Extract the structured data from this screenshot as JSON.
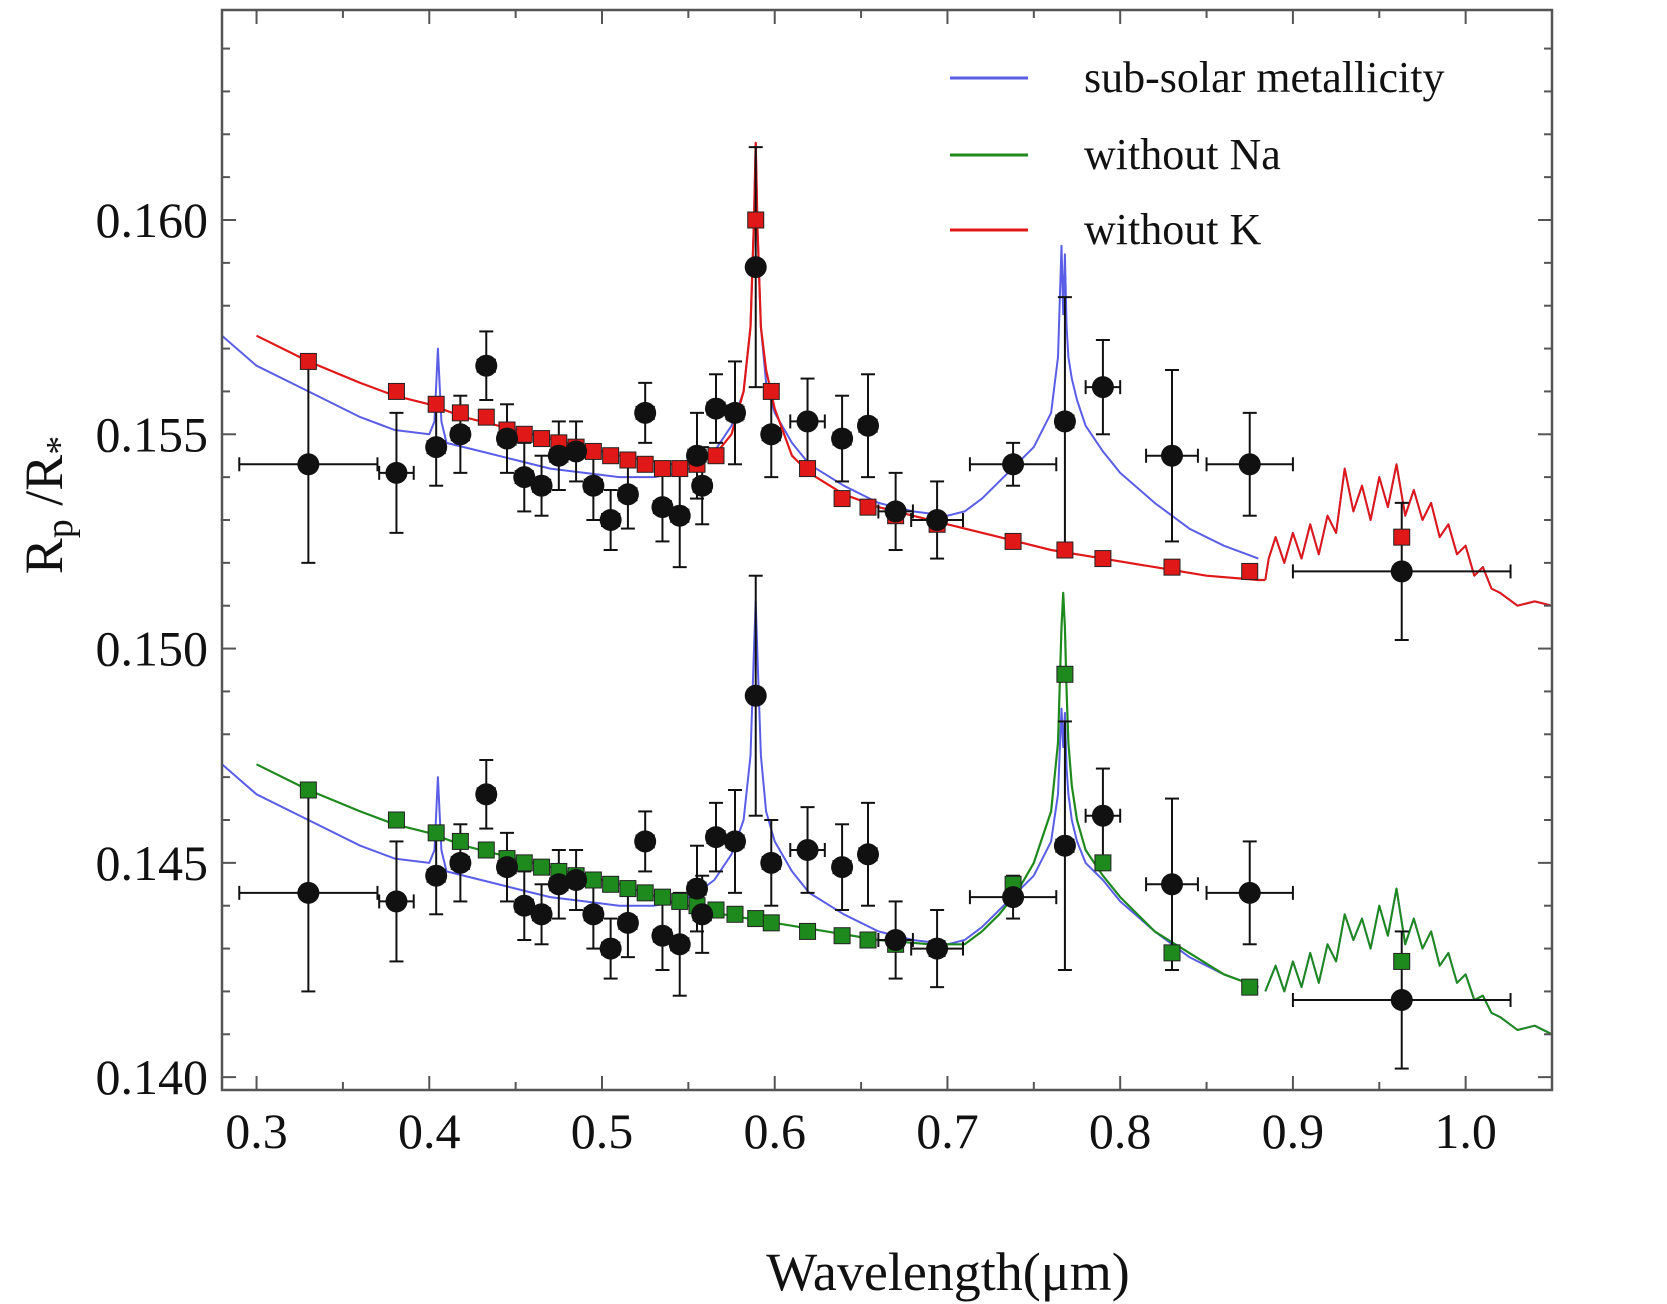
{
  "chart_data": {
    "type": "scatter",
    "xlabel": "Wavelength(μm)",
    "ylabel_main": "R",
    "ylabel_sub1": "p",
    "ylabel_sep": " /R",
    "ylabel_sub2": "*",
    "xlim": [
      0.28,
      1.05
    ],
    "ylim": [
      0.1397,
      0.1649
    ],
    "x_ticks": [
      0.3,
      0.4,
      0.5,
      0.6,
      0.7,
      0.8,
      0.9,
      1.0
    ],
    "x_tick_labels": [
      "0.3",
      "0.4",
      "0.5",
      "0.6",
      "0.7",
      "0.8",
      "0.9",
      "1.0"
    ],
    "y_ticks": [
      0.14,
      0.145,
      0.15,
      0.155,
      0.16
    ],
    "y_tick_labels": [
      "0.140",
      "0.145",
      "0.150",
      "0.155",
      "0.160"
    ],
    "legend_position": "top-right",
    "legend": [
      {
        "label": "sub-solar metallicity",
        "color": "#5a5ee6"
      },
      {
        "label": "without Na",
        "color": "#1e8a1e"
      },
      {
        "label": "without K",
        "color": "#e01818"
      }
    ],
    "observations_upper": [
      {
        "x": 0.33,
        "y": 0.1543,
        "xerr": 0.04,
        "yerr": 0.0023
      },
      {
        "x": 0.381,
        "y": 0.1541,
        "xerr": 0.01,
        "yerr": 0.0014
      },
      {
        "x": 0.404,
        "y": 0.1547,
        "xerr": 0.005,
        "yerr": 0.0009
      },
      {
        "x": 0.418,
        "y": 0.155,
        "xerr": 0.005,
        "yerr": 0.0009
      },
      {
        "x": 0.433,
        "y": 0.1566,
        "xerr": 0.005,
        "yerr": 0.0008
      },
      {
        "x": 0.445,
        "y": 0.1549,
        "xerr": 0.005,
        "yerr": 0.0008
      },
      {
        "x": 0.455,
        "y": 0.154,
        "xerr": 0.005,
        "yerr": 0.0008
      },
      {
        "x": 0.465,
        "y": 0.1538,
        "xerr": 0.005,
        "yerr": 0.0007
      },
      {
        "x": 0.475,
        "y": 0.1545,
        "xerr": 0.005,
        "yerr": 0.0008
      },
      {
        "x": 0.485,
        "y": 0.1546,
        "xerr": 0.005,
        "yerr": 0.0007
      },
      {
        "x": 0.495,
        "y": 0.1538,
        "xerr": 0.005,
        "yerr": 0.0008
      },
      {
        "x": 0.505,
        "y": 0.153,
        "xerr": 0.005,
        "yerr": 0.0007
      },
      {
        "x": 0.515,
        "y": 0.1536,
        "xerr": 0.005,
        "yerr": 0.0008
      },
      {
        "x": 0.525,
        "y": 0.1555,
        "xerr": 0.005,
        "yerr": 0.0007
      },
      {
        "x": 0.535,
        "y": 0.1533,
        "xerr": 0.005,
        "yerr": 0.0008
      },
      {
        "x": 0.545,
        "y": 0.1531,
        "xerr": 0.005,
        "yerr": 0.0012
      },
      {
        "x": 0.555,
        "y": 0.1545,
        "xerr": 0.005,
        "yerr": 0.001
      },
      {
        "x": 0.558,
        "y": 0.1538,
        "xerr": 0.005,
        "yerr": 0.0009
      },
      {
        "x": 0.566,
        "y": 0.1556,
        "xerr": 0.005,
        "yerr": 0.0008
      },
      {
        "x": 0.577,
        "y": 0.1555,
        "xerr": 0.005,
        "yerr": 0.0012
      },
      {
        "x": 0.589,
        "y": 0.1589,
        "xerr": 0.003,
        "yerr": 0.0028
      },
      {
        "x": 0.598,
        "y": 0.155,
        "xerr": 0.005,
        "yerr": 0.001
      },
      {
        "x": 0.619,
        "y": 0.1553,
        "xerr": 0.01,
        "yerr": 0.001
      },
      {
        "x": 0.639,
        "y": 0.1549,
        "xerr": 0.005,
        "yerr": 0.001
      },
      {
        "x": 0.654,
        "y": 0.1552,
        "xerr": 0.005,
        "yerr": 0.0012
      },
      {
        "x": 0.67,
        "y": 0.1532,
        "xerr": 0.01,
        "yerr": 0.0009
      },
      {
        "x": 0.694,
        "y": 0.153,
        "xerr": 0.015,
        "yerr": 0.0009
      },
      {
        "x": 0.738,
        "y": 0.1543,
        "xerr": 0.025,
        "yerr": 0.0005
      },
      {
        "x": 0.768,
        "y": 0.1553,
        "xerr": 0.005,
        "yerr": 0.0029
      },
      {
        "x": 0.79,
        "y": 0.1561,
        "xerr": 0.01,
        "yerr": 0.0011
      },
      {
        "x": 0.83,
        "y": 0.1545,
        "xerr": 0.015,
        "yerr": 0.002
      },
      {
        "x": 0.875,
        "y": 0.1543,
        "xerr": 0.025,
        "yerr": 0.0012
      },
      {
        "x": 0.963,
        "y": 0.1518,
        "xerr": 0.063,
        "yerr": 0.0016
      }
    ],
    "observations_lower": [
      {
        "x": 0.33,
        "y": 0.1443,
        "xerr": 0.04,
        "yerr": 0.0023
      },
      {
        "x": 0.381,
        "y": 0.1441,
        "xerr": 0.01,
        "yerr": 0.0014
      },
      {
        "x": 0.404,
        "y": 0.1447,
        "xerr": 0.005,
        "yerr": 0.0009
      },
      {
        "x": 0.418,
        "y": 0.145,
        "xerr": 0.005,
        "yerr": 0.0009
      },
      {
        "x": 0.433,
        "y": 0.1466,
        "xerr": 0.005,
        "yerr": 0.0008
      },
      {
        "x": 0.445,
        "y": 0.1449,
        "xerr": 0.005,
        "yerr": 0.0008
      },
      {
        "x": 0.455,
        "y": 0.144,
        "xerr": 0.005,
        "yerr": 0.0008
      },
      {
        "x": 0.465,
        "y": 0.1438,
        "xerr": 0.005,
        "yerr": 0.0007
      },
      {
        "x": 0.475,
        "y": 0.1445,
        "xerr": 0.005,
        "yerr": 0.0008
      },
      {
        "x": 0.485,
        "y": 0.1446,
        "xerr": 0.005,
        "yerr": 0.0007
      },
      {
        "x": 0.495,
        "y": 0.1438,
        "xerr": 0.005,
        "yerr": 0.0008
      },
      {
        "x": 0.505,
        "y": 0.143,
        "xerr": 0.005,
        "yerr": 0.0007
      },
      {
        "x": 0.515,
        "y": 0.1436,
        "xerr": 0.005,
        "yerr": 0.0008
      },
      {
        "x": 0.525,
        "y": 0.1455,
        "xerr": 0.005,
        "yerr": 0.0007
      },
      {
        "x": 0.535,
        "y": 0.1433,
        "xerr": 0.005,
        "yerr": 0.0008
      },
      {
        "x": 0.545,
        "y": 0.1431,
        "xerr": 0.005,
        "yerr": 0.0012
      },
      {
        "x": 0.555,
        "y": 0.1444,
        "xerr": 0.005,
        "yerr": 0.001
      },
      {
        "x": 0.558,
        "y": 0.1438,
        "xerr": 0.005,
        "yerr": 0.0009
      },
      {
        "x": 0.566,
        "y": 0.1456,
        "xerr": 0.005,
        "yerr": 0.0008
      },
      {
        "x": 0.577,
        "y": 0.1455,
        "xerr": 0.005,
        "yerr": 0.0012
      },
      {
        "x": 0.589,
        "y": 0.1489,
        "xerr": 0.003,
        "yerr": 0.0028
      },
      {
        "x": 0.598,
        "y": 0.145,
        "xerr": 0.005,
        "yerr": 0.001
      },
      {
        "x": 0.619,
        "y": 0.1453,
        "xerr": 0.01,
        "yerr": 0.001
      },
      {
        "x": 0.639,
        "y": 0.1449,
        "xerr": 0.005,
        "yerr": 0.001
      },
      {
        "x": 0.654,
        "y": 0.1452,
        "xerr": 0.005,
        "yerr": 0.0012
      },
      {
        "x": 0.67,
        "y": 0.1432,
        "xerr": 0.01,
        "yerr": 0.0009
      },
      {
        "x": 0.694,
        "y": 0.143,
        "xerr": 0.015,
        "yerr": 0.0009
      },
      {
        "x": 0.738,
        "y": 0.1442,
        "xerr": 0.025,
        "yerr": 0.0005
      },
      {
        "x": 0.768,
        "y": 0.1454,
        "xerr": 0.005,
        "yerr": 0.0029
      },
      {
        "x": 0.79,
        "y": 0.1461,
        "xerr": 0.01,
        "yerr": 0.0011
      },
      {
        "x": 0.83,
        "y": 0.1445,
        "xerr": 0.015,
        "yerr": 0.002
      },
      {
        "x": 0.875,
        "y": 0.1443,
        "xerr": 0.025,
        "yerr": 0.0012
      },
      {
        "x": 0.963,
        "y": 0.1418,
        "xerr": 0.063,
        "yerr": 0.0016
      }
    ],
    "model_upper": {
      "x": [
        0.28,
        0.3,
        0.33,
        0.36,
        0.38,
        0.4,
        0.403,
        0.405,
        0.407,
        0.41,
        0.43,
        0.45,
        0.47,
        0.49,
        0.51,
        0.53,
        0.545,
        0.555,
        0.565,
        0.575,
        0.582,
        0.586,
        0.588,
        0.589,
        0.59,
        0.592,
        0.595,
        0.6,
        0.61,
        0.62,
        0.64,
        0.66,
        0.68,
        0.7,
        0.71,
        0.72,
        0.73,
        0.74,
        0.75,
        0.76,
        0.764,
        0.766,
        0.767,
        0.768,
        0.769,
        0.77,
        0.772,
        0.775,
        0.78,
        0.79,
        0.8,
        0.82,
        0.84,
        0.86,
        0.88
      ],
      "y": [
        0.1573,
        0.1566,
        0.156,
        0.1554,
        0.1551,
        0.155,
        0.1553,
        0.157,
        0.1553,
        0.1548,
        0.1546,
        0.1544,
        0.1542,
        0.1541,
        0.154,
        0.154,
        0.1541,
        0.1543,
        0.1546,
        0.1552,
        0.156,
        0.1575,
        0.16,
        0.1618,
        0.1598,
        0.1575,
        0.1562,
        0.1555,
        0.1548,
        0.1543,
        0.1538,
        0.1534,
        0.1532,
        0.1531,
        0.1532,
        0.1535,
        0.1539,
        0.1543,
        0.1547,
        0.1555,
        0.1568,
        0.1594,
        0.1578,
        0.1592,
        0.1575,
        0.1568,
        0.1563,
        0.1558,
        0.1552,
        0.1546,
        0.1541,
        0.1534,
        0.1528,
        0.1524,
        0.1521
      ]
    },
    "model_without_K": {
      "x": [
        0.3,
        0.33,
        0.36,
        0.38,
        0.4,
        0.42,
        0.45,
        0.48,
        0.51,
        0.54,
        0.555,
        0.565,
        0.575,
        0.582,
        0.586,
        0.588,
        0.589,
        0.59,
        0.592,
        0.595,
        0.6,
        0.61,
        0.62,
        0.64,
        0.66,
        0.68,
        0.7,
        0.73,
        0.76,
        0.79,
        0.82,
        0.85,
        0.88,
        0.884
      ],
      "y": [
        0.1573,
        0.1567,
        0.1562,
        0.1559,
        0.1557,
        0.1554,
        0.1551,
        0.1548,
        0.1545,
        0.1543,
        0.1543,
        0.1545,
        0.155,
        0.156,
        0.1575,
        0.16,
        0.1618,
        0.1598,
        0.1575,
        0.1565,
        0.1556,
        0.1545,
        0.1541,
        0.1536,
        0.1533,
        0.1531,
        0.1529,
        0.1526,
        0.1523,
        0.1521,
        0.1519,
        0.1517,
        0.1516,
        0.1516
      ]
    },
    "model_tail_upper": {
      "x": [
        0.884,
        0.886,
        0.89,
        0.895,
        0.9,
        0.905,
        0.91,
        0.915,
        0.92,
        0.925,
        0.93,
        0.935,
        0.94,
        0.945,
        0.95,
        0.955,
        0.96,
        0.965,
        0.97,
        0.975,
        0.98,
        0.985,
        0.99,
        0.995,
        1.0,
        1.005,
        1.01,
        1.015,
        1.02,
        1.03,
        1.04,
        1.05
      ],
      "y": [
        0.1516,
        0.1521,
        0.1526,
        0.152,
        0.1527,
        0.1521,
        0.1529,
        0.1522,
        0.1531,
        0.1527,
        0.1542,
        0.1532,
        0.1538,
        0.153,
        0.154,
        0.1533,
        0.1543,
        0.1531,
        0.1537,
        0.153,
        0.1534,
        0.1526,
        0.1529,
        0.1522,
        0.1524,
        0.1517,
        0.1519,
        0.1514,
        0.1513,
        0.151,
        0.1511,
        0.151
      ]
    },
    "model_lower": {
      "x": [
        0.28,
        0.3,
        0.33,
        0.36,
        0.38,
        0.4,
        0.403,
        0.405,
        0.407,
        0.41,
        0.43,
        0.45,
        0.47,
        0.49,
        0.51,
        0.53,
        0.545,
        0.555,
        0.565,
        0.575,
        0.582,
        0.586,
        0.588,
        0.589,
        0.59,
        0.592,
        0.595,
        0.6,
        0.61,
        0.62,
        0.64,
        0.66,
        0.68,
        0.7,
        0.71,
        0.72,
        0.73,
        0.74,
        0.75,
        0.76,
        0.764,
        0.766,
        0.767,
        0.768,
        0.769,
        0.77,
        0.772,
        0.775,
        0.78,
        0.79,
        0.8,
        0.82,
        0.84,
        0.86,
        0.88
      ],
      "y": [
        0.1473,
        0.1466,
        0.146,
        0.1454,
        0.1451,
        0.145,
        0.1453,
        0.147,
        0.1453,
        0.1448,
        0.1446,
        0.1444,
        0.1442,
        0.1441,
        0.144,
        0.144,
        0.1441,
        0.1443,
        0.1446,
        0.1452,
        0.146,
        0.1475,
        0.15,
        0.1511,
        0.1498,
        0.1475,
        0.1462,
        0.1455,
        0.1448,
        0.1443,
        0.1438,
        0.1434,
        0.1432,
        0.1431,
        0.1432,
        0.1435,
        0.1439,
        0.1443,
        0.1447,
        0.1455,
        0.1466,
        0.1486,
        0.1477,
        0.1485,
        0.1472,
        0.1466,
        0.146,
        0.1455,
        0.145,
        0.1446,
        0.1441,
        0.1434,
        0.1428,
        0.1424,
        0.1421
      ]
    },
    "model_without_Na": {
      "x": [
        0.3,
        0.33,
        0.36,
        0.38,
        0.4,
        0.42,
        0.45,
        0.48,
        0.51,
        0.54,
        0.57,
        0.6,
        0.63,
        0.66,
        0.69,
        0.71,
        0.72,
        0.73,
        0.74,
        0.75,
        0.76,
        0.764,
        0.766,
        0.767,
        0.768,
        0.769,
        0.77,
        0.772,
        0.775,
        0.78,
        0.79,
        0.8,
        0.82,
        0.84,
        0.86,
        0.88
      ],
      "y": [
        0.1473,
        0.1467,
        0.1462,
        0.1459,
        0.1457,
        0.1454,
        0.1451,
        0.1448,
        0.1445,
        0.1441,
        0.1438,
        0.1436,
        0.1434,
        0.1432,
        0.1431,
        0.1431,
        0.1434,
        0.1438,
        0.1443,
        0.145,
        0.1462,
        0.1478,
        0.1505,
        0.1513,
        0.1505,
        0.149,
        0.1478,
        0.1468,
        0.146,
        0.1453,
        0.1447,
        0.1442,
        0.1434,
        0.1429,
        0.1424,
        0.1421
      ]
    },
    "model_tail_lower": {
      "x": [
        0.884,
        0.886,
        0.89,
        0.895,
        0.9,
        0.905,
        0.91,
        0.915,
        0.92,
        0.925,
        0.93,
        0.935,
        0.94,
        0.945,
        0.95,
        0.955,
        0.96,
        0.965,
        0.97,
        0.975,
        0.98,
        0.985,
        0.99,
        0.995,
        1.0,
        1.005,
        1.01,
        1.015,
        1.02,
        1.03,
        1.04,
        1.05
      ],
      "y": [
        0.142,
        0.1422,
        0.1426,
        0.142,
        0.1427,
        0.1421,
        0.1429,
        0.1422,
        0.1431,
        0.1427,
        0.1438,
        0.1432,
        0.1437,
        0.143,
        0.144,
        0.1433,
        0.1444,
        0.1431,
        0.1437,
        0.143,
        0.1434,
        0.1426,
        0.1429,
        0.1422,
        0.1424,
        0.1418,
        0.1419,
        0.1415,
        0.1414,
        0.1411,
        0.1412,
        0.141
      ]
    },
    "binned_without_K": {
      "x": [
        0.33,
        0.381,
        0.404,
        0.418,
        0.433,
        0.445,
        0.455,
        0.465,
        0.475,
        0.485,
        0.495,
        0.505,
        0.515,
        0.525,
        0.535,
        0.545,
        0.555,
        0.566,
        0.577,
        0.589,
        0.598,
        0.619,
        0.639,
        0.654,
        0.67,
        0.694,
        0.738,
        0.768,
        0.79,
        0.83,
        0.875,
        0.963
      ],
      "y": [
        0.1567,
        0.156,
        0.1557,
        0.1555,
        0.1554,
        0.1551,
        0.155,
        0.1549,
        0.1548,
        0.1547,
        0.1546,
        0.1545,
        0.1544,
        0.1543,
        0.1542,
        0.1542,
        0.1543,
        0.1545,
        0.1555,
        0.16,
        0.156,
        0.1542,
        0.1535,
        0.1533,
        0.1531,
        0.1529,
        0.1525,
        0.1523,
        0.1521,
        0.1519,
        0.1518,
        0.1526
      ]
    },
    "binned_without_Na": {
      "x": [
        0.33,
        0.381,
        0.404,
        0.418,
        0.433,
        0.445,
        0.455,
        0.465,
        0.475,
        0.485,
        0.495,
        0.505,
        0.515,
        0.525,
        0.535,
        0.545,
        0.555,
        0.566,
        0.577,
        0.589,
        0.598,
        0.619,
        0.639,
        0.654,
        0.67,
        0.694,
        0.738,
        0.768,
        0.79,
        0.83,
        0.875,
        0.963
      ],
      "y": [
        0.1467,
        0.146,
        0.1457,
        0.1455,
        0.1453,
        0.1451,
        0.145,
        0.1449,
        0.1448,
        0.1447,
        0.1446,
        0.1445,
        0.1444,
        0.1443,
        0.1442,
        0.1441,
        0.144,
        0.1439,
        0.1438,
        0.1437,
        0.1436,
        0.1434,
        0.1433,
        0.1432,
        0.1431,
        0.143,
        0.1445,
        0.1494,
        0.145,
        0.1429,
        0.1421,
        0.1427
      ]
    }
  }
}
